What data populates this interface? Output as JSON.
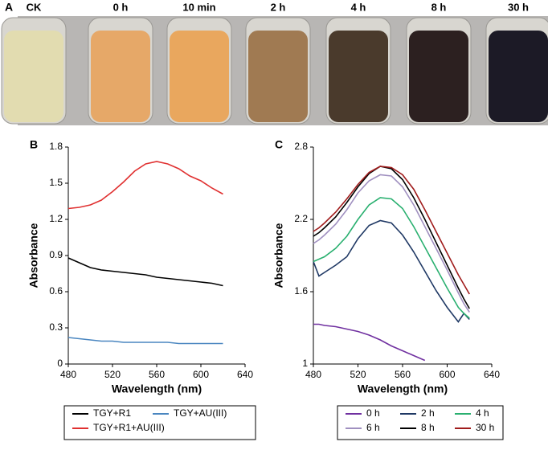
{
  "panel_a": {
    "label": "A",
    "samples": [
      "CK",
      "0 h",
      "10 min",
      "2 h",
      "4 h",
      "8 h",
      "30 h"
    ]
  },
  "chart_data": [
    {
      "type": "line",
      "label": "B",
      "x_label": "Wavelength (nm)",
      "y_label": "Absorbance",
      "xlim": [
        480,
        640
      ],
      "xticks": [
        480,
        520,
        560,
        600,
        640
      ],
      "ylim": [
        0,
        1.8
      ],
      "yticks": [
        0,
        0.3,
        0.6,
        0.9,
        1.2,
        1.5,
        1.8
      ],
      "x": [
        480,
        490,
        500,
        510,
        520,
        530,
        540,
        550,
        560,
        570,
        580,
        590,
        600,
        610,
        620
      ],
      "series": [
        {
          "name": "TGY+R1",
          "color": "#000000",
          "values": [
            0.88,
            0.84,
            0.8,
            0.78,
            0.77,
            0.76,
            0.75,
            0.74,
            0.72,
            0.71,
            0.7,
            0.69,
            0.68,
            0.67,
            0.65
          ]
        },
        {
          "name": "TGY+AU(III)",
          "color": "#4a86c0",
          "values": [
            0.22,
            0.21,
            0.2,
            0.19,
            0.19,
            0.18,
            0.18,
            0.18,
            0.18,
            0.18,
            0.17,
            0.17,
            0.17,
            0.17,
            0.17
          ]
        },
        {
          "name": "TGY+R1+AU(III)",
          "color": "#e03030",
          "values": [
            1.29,
            1.3,
            1.32,
            1.36,
            1.43,
            1.51,
            1.6,
            1.66,
            1.68,
            1.66,
            1.62,
            1.56,
            1.52,
            1.46,
            1.41
          ]
        }
      ]
    },
    {
      "type": "line",
      "label": "C",
      "x_label": "Wavelength (nm)",
      "y_label": "Absorbance",
      "xlim": [
        480,
        640
      ],
      "xticks": [
        480,
        520,
        560,
        600,
        640
      ],
      "ylim": [
        1,
        2.8
      ],
      "yticks": [
        1,
        1.6,
        2.2,
        2.8
      ],
      "x": [
        480,
        485,
        490,
        500,
        510,
        520,
        530,
        540,
        550,
        560,
        570,
        580,
        590,
        600,
        610,
        615,
        620
      ],
      "series": [
        {
          "name": "0 h",
          "color": "#7030a0",
          "values": [
            1.33,
            1.33,
            1.32,
            1.31,
            1.29,
            1.27,
            1.24,
            1.2,
            1.15,
            1.11,
            1.07,
            1.03,
            null,
            null,
            null,
            null,
            null
          ]
        },
        {
          "name": "2 h",
          "color": "#1f3864",
          "values": [
            1.85,
            1.73,
            1.76,
            1.82,
            1.89,
            2.04,
            2.15,
            2.19,
            2.17,
            2.07,
            1.93,
            1.77,
            1.61,
            1.47,
            1.35,
            1.42,
            1.37
          ]
        },
        {
          "name": "4 h",
          "color": "#2ab070",
          "values": [
            1.85,
            1.87,
            1.89,
            1.96,
            2.06,
            2.2,
            2.32,
            2.38,
            2.37,
            2.29,
            2.14,
            1.97,
            1.8,
            1.63,
            1.47,
            1.42,
            1.38
          ]
        },
        {
          "name": "6 h",
          "color": "#a090c0",
          "values": [
            2.0,
            2.03,
            2.07,
            2.16,
            2.28,
            2.42,
            2.52,
            2.57,
            2.56,
            2.47,
            2.32,
            2.14,
            1.96,
            1.78,
            1.59,
            1.5,
            1.43
          ]
        },
        {
          "name": "8 h",
          "color": "#000000",
          "values": [
            2.06,
            2.09,
            2.13,
            2.22,
            2.34,
            2.47,
            2.58,
            2.64,
            2.62,
            2.53,
            2.38,
            2.2,
            2.01,
            1.82,
            1.63,
            1.54,
            1.46
          ]
        },
        {
          "name": "30 h",
          "color": "#a01c1c",
          "values": [
            2.1,
            2.13,
            2.17,
            2.26,
            2.37,
            2.49,
            2.59,
            2.64,
            2.63,
            2.57,
            2.45,
            2.28,
            2.1,
            1.92,
            1.74,
            1.66,
            1.58
          ]
        }
      ]
    }
  ]
}
